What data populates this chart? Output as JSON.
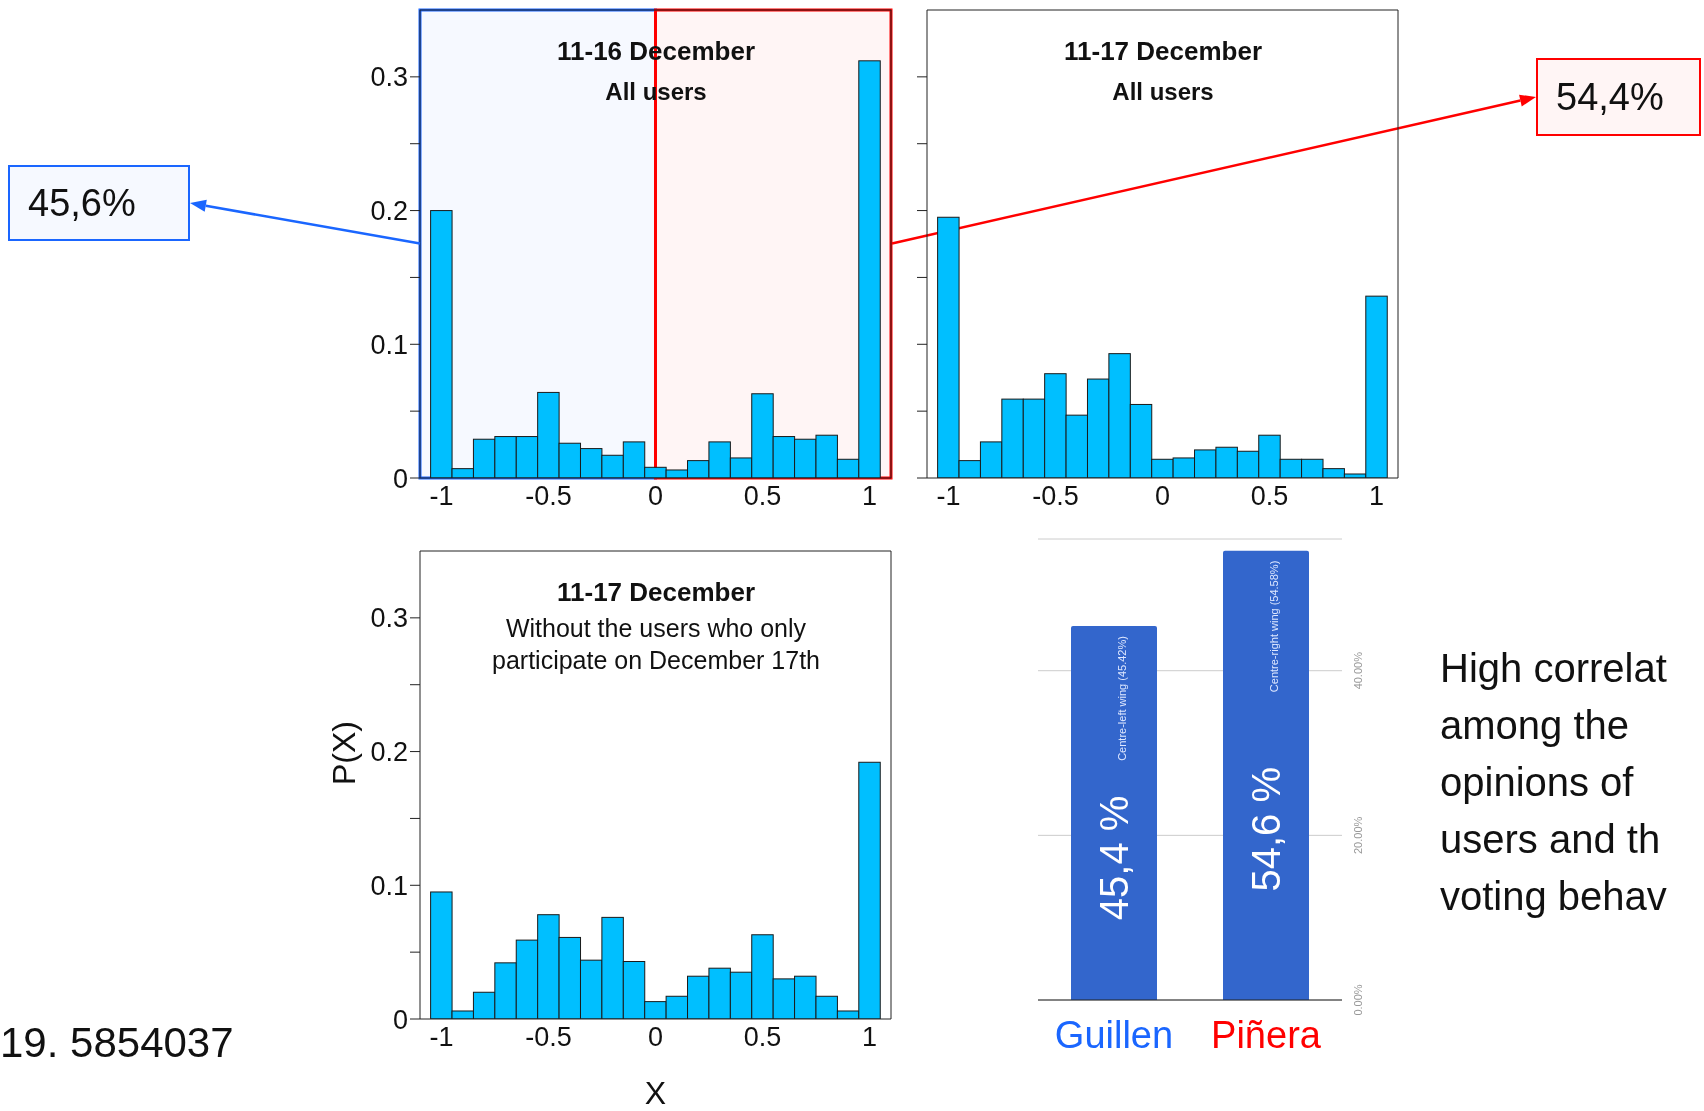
{
  "chart_data": [
    {
      "type": "histogram",
      "title": "11-16 December",
      "subtitle": "All users",
      "color": "#00bfff",
      "bins": [
        -1.05,
        -0.95,
        -0.85,
        -0.75,
        -0.65,
        -0.55,
        -0.45,
        -0.35,
        -0.25,
        -0.15,
        -0.05,
        0.05,
        0.15,
        0.25,
        0.35,
        0.45,
        0.55,
        0.65,
        0.75,
        0.85,
        0.95,
        1.05
      ],
      "values": [
        0.2,
        0.007,
        0.029,
        0.031,
        0.031,
        0.064,
        0.026,
        0.022,
        0.017,
        0.027,
        0.008,
        0.006,
        0.013,
        0.027,
        0.015,
        0.063,
        0.031,
        0.029,
        0.032,
        0.014,
        0.312
      ],
      "xlim": [
        -1.1,
        1.1
      ],
      "xticks": [
        -1,
        -0.5,
        0,
        0.5,
        1
      ],
      "ylim": [
        0,
        0.35
      ],
      "yticks": [
        0,
        {
          "value": 0.05,
          "label": null
        },
        0.1,
        {
          "value": 0.15,
          "label": null
        },
        0.2,
        {
          "value": 0.25,
          "label": null
        },
        0.3
      ],
      "bands": [
        {
          "axis": "x",
          "from": -1.1,
          "to": 0,
          "color": "#1a66ff"
        },
        {
          "axis": "x",
          "from": 0,
          "to": 1.1,
          "color": "#ff0000"
        }
      ],
      "annotations": [
        "45,6%",
        "54,4%"
      ]
    },
    {
      "type": "histogram",
      "title": "11-17 December",
      "subtitle": "All users",
      "color": "#00bfff",
      "bins": [
        -1.05,
        -0.95,
        -0.85,
        -0.75,
        -0.65,
        -0.55,
        -0.45,
        -0.35,
        -0.25,
        -0.15,
        -0.05,
        0.05,
        0.15,
        0.25,
        0.35,
        0.45,
        0.55,
        0.65,
        0.75,
        0.85,
        0.95,
        1.05
      ],
      "values": [
        0.195,
        0.013,
        0.027,
        0.059,
        0.059,
        0.078,
        0.047,
        0.074,
        0.093,
        0.055,
        0.014,
        0.015,
        0.021,
        0.023,
        0.02,
        0.032,
        0.014,
        0.014,
        0.007,
        0.003,
        0.136
      ],
      "xlim": [
        -1.1,
        1.1
      ],
      "xticks": [
        -1,
        -0.5,
        0,
        0.5,
        1
      ],
      "ylim": [
        0,
        0.35
      ],
      "yticks": [
        0,
        0.05,
        0.1,
        0.15,
        0.2,
        0.25,
        0.3
      ],
      "tick_labels": "x"
    },
    {
      "type": "histogram",
      "title": "11-17 December",
      "subtitle": "Without the users who only participate on December 17th",
      "xlabel": "X",
      "ylabel": "P(X)",
      "color": "#00bfff",
      "bins": [
        -1.05,
        -0.95,
        -0.85,
        -0.75,
        -0.65,
        -0.55,
        -0.45,
        -0.35,
        -0.25,
        -0.15,
        -0.05,
        0.05,
        0.15,
        0.25,
        0.35,
        0.45,
        0.55,
        0.65,
        0.75,
        0.85,
        0.95,
        1.05
      ],
      "values": [
        0.095,
        0.006,
        0.02,
        0.042,
        0.059,
        0.078,
        0.061,
        0.044,
        0.076,
        0.043,
        0.013,
        0.017,
        0.032,
        0.038,
        0.035,
        0.063,
        0.03,
        0.032,
        0.017,
        0.006,
        0.192
      ],
      "xlim": [
        -1.1,
        1.1
      ],
      "xticks": [
        -1,
        -0.5,
        0,
        0.5,
        1
      ],
      "ylim": [
        0,
        0.35
      ],
      "yticks": [
        0,
        {
          "value": 0.05,
          "label": null
        },
        0.1,
        {
          "value": 0.15,
          "label": null
        },
        0.2,
        {
          "value": 0.25,
          "label": null
        },
        0.3
      ],
      "annotations": [
        "19. 5854037"
      ]
    },
    {
      "type": "bar",
      "categories": [
        "Guillen",
        "Piñera"
      ],
      "values": [
        45.42,
        54.58
      ],
      "color": "#3366cc",
      "value_labels": [
        "45,4 %",
        "54,6 %"
      ],
      "ylim": [
        0,
        56
      ],
      "yticks": [
        {
          "value": 0,
          "label": "0.00%"
        },
        {
          "value": 20,
          "label": "20.00%"
        },
        {
          "value": 40,
          "label": "40.00%"
        }
      ],
      "grid": "y",
      "annotations": [
        {
          "text": "Centre-left wing (45.42%)",
          "x": "Guillen",
          "y": 45.42
        },
        {
          "text": "Centre-right wing (54.58%)",
          "x": "Piñera",
          "y": 54.58
        },
        "High correlat",
        "among the",
        "opinions of",
        "users and th",
        "voting behav"
      ]
    }
  ]
}
